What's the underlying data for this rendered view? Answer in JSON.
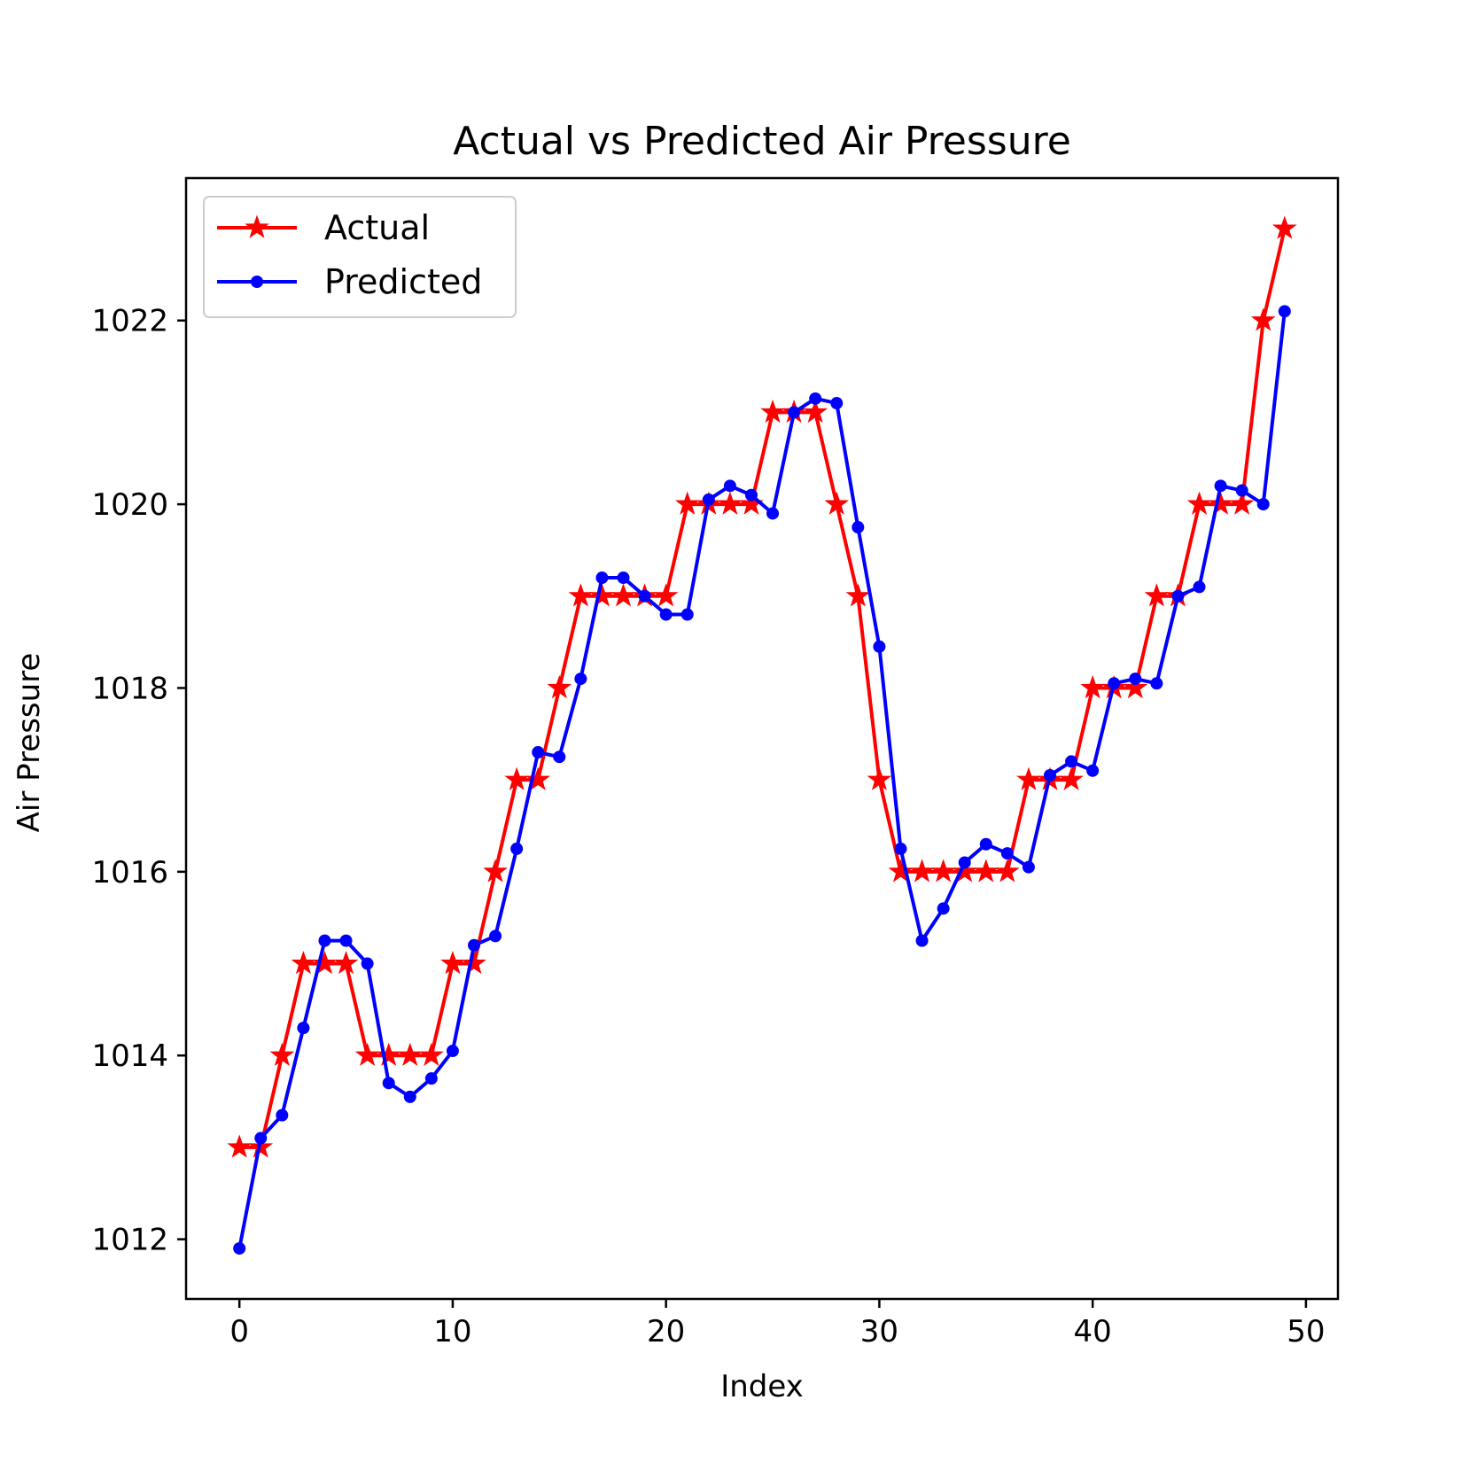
{
  "chart_data": {
    "type": "line",
    "title": "Actual vs Predicted Air Pressure",
    "xlabel": "Index",
    "ylabel": "Air Pressure",
    "xlim": [
      -2.5,
      51.5
    ],
    "ylim": [
      1011.35,
      1023.55
    ],
    "xticks": [
      0,
      10,
      20,
      30,
      40,
      50
    ],
    "yticks": [
      1012,
      1014,
      1016,
      1018,
      1020,
      1022
    ],
    "grid": false,
    "legend_position": "upper-left",
    "x": [
      0,
      1,
      2,
      3,
      4,
      5,
      6,
      7,
      8,
      9,
      10,
      11,
      12,
      13,
      14,
      15,
      16,
      17,
      18,
      19,
      20,
      21,
      22,
      23,
      24,
      25,
      26,
      27,
      28,
      29,
      30,
      31,
      32,
      33,
      34,
      35,
      36,
      37,
      38,
      39,
      40,
      41,
      42,
      43,
      44,
      45,
      46,
      47,
      48,
      49
    ],
    "series": [
      {
        "name": "Actual",
        "color": "#ff0000",
        "marker": "star",
        "values": [
          1013,
          1013,
          1014,
          1015,
          1015,
          1015,
          1014,
          1014,
          1014,
          1014,
          1015,
          1015,
          1016,
          1017,
          1017,
          1018,
          1019,
          1019,
          1019,
          1019,
          1019,
          1020,
          1020,
          1020,
          1020,
          1021,
          1021,
          1021,
          1020,
          1019,
          1017,
          1016,
          1016,
          1016,
          1016,
          1016,
          1016,
          1017,
          1017,
          1017,
          1018,
          1018,
          1018,
          1019,
          1019,
          1020,
          1020,
          1020,
          1022,
          1023
        ]
      },
      {
        "name": "Predicted",
        "color": "#0000ff",
        "marker": "dot",
        "values": [
          1011.9,
          1013.1,
          1013.35,
          1014.3,
          1015.25,
          1015.25,
          1015.0,
          1013.7,
          1013.55,
          1013.75,
          1014.05,
          1015.2,
          1015.3,
          1016.25,
          1017.3,
          1017.25,
          1018.1,
          1019.2,
          1019.2,
          1019.0,
          1018.8,
          1018.8,
          1020.05,
          1020.2,
          1020.1,
          1019.9,
          1021.0,
          1021.15,
          1021.1,
          1019.75,
          1018.45,
          1016.25,
          1015.25,
          1015.6,
          1016.1,
          1016.3,
          1016.2,
          1016.05,
          1017.05,
          1017.2,
          1017.1,
          1018.05,
          1018.1,
          1018.05,
          1019.0,
          1019.1,
          1020.2,
          1020.15,
          1020.0,
          1022.1
        ]
      }
    ]
  }
}
